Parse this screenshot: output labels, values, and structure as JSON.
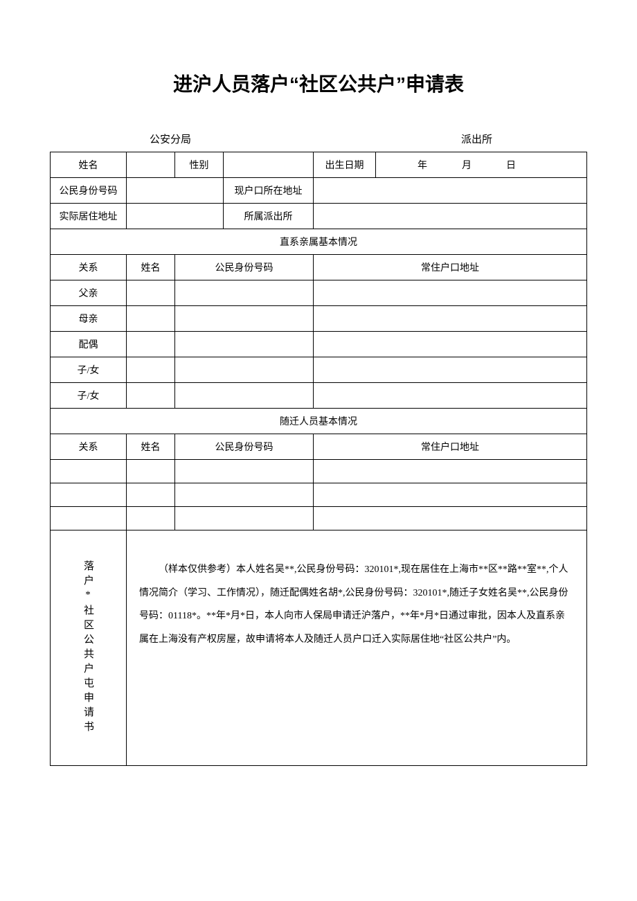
{
  "title": "进沪人员落户“社区公共户”申请表",
  "subheader": {
    "left": "公安分局",
    "right": "派出所"
  },
  "labels": {
    "name": "姓名",
    "gender": "性别",
    "birthdate": "出生日期",
    "year": "年",
    "month": "月",
    "day": "日",
    "id_number": "公民身份号码",
    "current_hukou_addr": "现户口所在地址",
    "actual_addr": "实际居住地址",
    "police_station": "所属派出所",
    "relatives_section": "直系亲属基本情况",
    "relation": "关系",
    "rel_name": "姓名",
    "rel_id": "公民身份号码",
    "rel_addr": "常住户口地址",
    "father": "父亲",
    "mother": "母亲",
    "spouse": "配偶",
    "child1": "子/女",
    "child2": "子/女",
    "migrant_section": "随迁人员基本情况",
    "mig_relation": "关系",
    "mig_name": "姓名",
    "mig_id": "公民身份号码",
    "mig_addr": "常住户口地址",
    "app_label": "落户*社区公共户屯申请书"
  },
  "application_text": "（样本仅供参考）本人姓名吴**,公民身份号码：320101*,现在居住在上海市**区**路**室**,个人情况简介（学习、工作情况），随迁配偶姓名胡*,公民身份号码：320101*,随迁子女姓名吴**,公民身份号码：01118*。**年*月*日，本人向市人保局申请迁沪落户，**年*月*日通过审批，因本人及直系亲属在上海没有产权房屋，故申请将本人及随迁人员户口迁入实际居住地“社区公共户”内。",
  "styling": {
    "border_color": "#000000",
    "background_color": "#ffffff",
    "text_color": "#000000",
    "title_fontsize": 28,
    "body_fontsize": 14,
    "line_height": 2.4
  }
}
